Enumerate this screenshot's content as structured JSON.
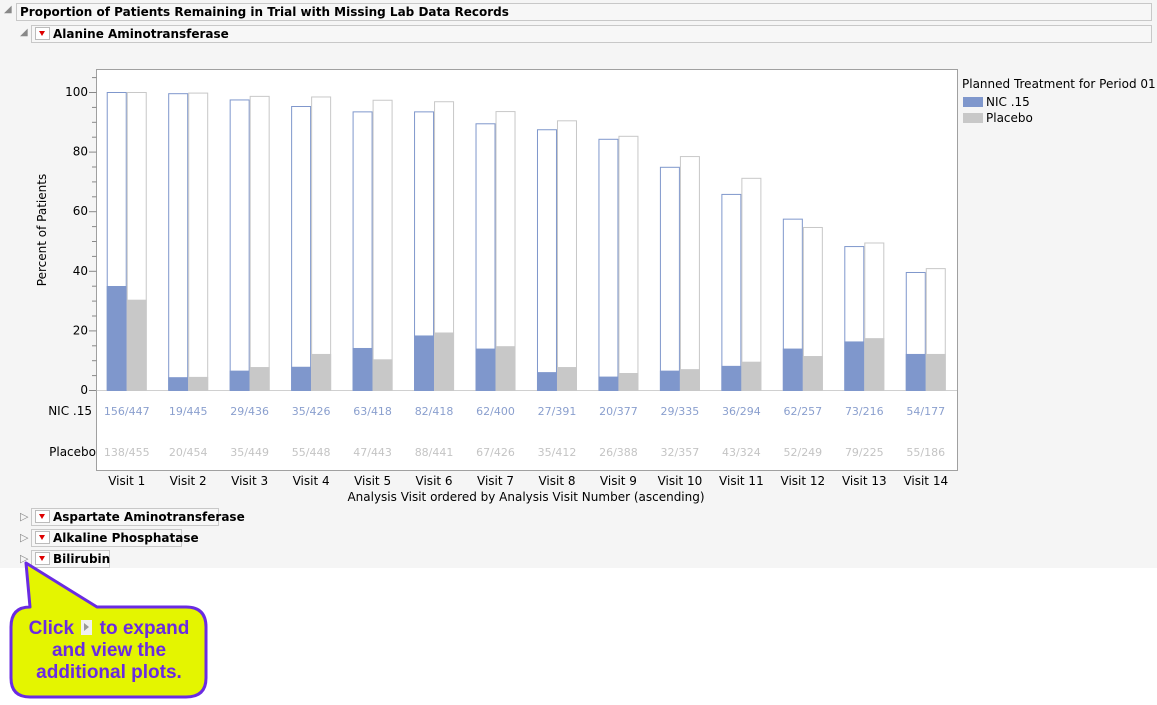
{
  "report": {
    "title": "Proportion of Patients Remaining in Trial with Missing Lab Data Records",
    "sections": [
      {
        "label": "Alanine Aminotransferase",
        "expanded": true
      },
      {
        "label": "Aspartate Aminotransferase",
        "expanded": false
      },
      {
        "label": "Alkaline Phosphatase",
        "expanded": false
      },
      {
        "label": "Bilirubin",
        "expanded": false
      }
    ]
  },
  "chart_data": {
    "type": "bar",
    "title": "",
    "xlabel": "Analysis Visit ordered by Analysis Visit Number (ascending)",
    "ylabel": "Percent of Patients",
    "ylim": [
      0,
      105
    ],
    "yticks": [
      0,
      20,
      40,
      60,
      80,
      100
    ],
    "grid": false,
    "legend": {
      "title": "Planned Treatment for Period 01",
      "placement": "right"
    },
    "categories": [
      "Visit 1",
      "Visit 2",
      "Visit 3",
      "Visit 4",
      "Visit 5",
      "Visit 6",
      "Visit 7",
      "Visit 8",
      "Visit 9",
      "Visit 10",
      "Visit 11",
      "Visit 12",
      "Visit 13",
      "Visit 14"
    ],
    "series": [
      {
        "name": "NIC .15",
        "color": "#7f97cc",
        "percent_remaining": [
          100,
          99.6,
          97.5,
          95.3,
          93.5,
          93.5,
          89.5,
          87.5,
          84.3,
          74.9,
          65.8,
          57.5,
          48.3,
          39.6
        ],
        "percent_missing": [
          34.9,
          4.3,
          6.5,
          7.8,
          14.1,
          18.3,
          13.9,
          6.0,
          4.5,
          6.5,
          8.1,
          13.9,
          16.3,
          12.1
        ],
        "count_labels": [
          "156/447",
          "19/445",
          "29/436",
          "35/426",
          "63/418",
          "82/418",
          "62/400",
          "27/391",
          "20/377",
          "29/335",
          "36/294",
          "62/257",
          "73/216",
          "54/177"
        ]
      },
      {
        "name": "Placebo",
        "color": "#c8c8c8",
        "percent_remaining": [
          100,
          99.8,
          98.7,
          98.5,
          97.4,
          96.9,
          93.6,
          90.5,
          85.3,
          78.5,
          71.2,
          54.7,
          49.5,
          40.9
        ],
        "percent_missing": [
          30.3,
          4.4,
          7.7,
          12.1,
          10.3,
          19.3,
          14.7,
          7.7,
          5.7,
          7.0,
          9.5,
          11.4,
          17.4,
          12.1
        ],
        "count_labels": [
          "138/455",
          "20/454",
          "35/449",
          "55/448",
          "47/443",
          "88/441",
          "67/426",
          "35/412",
          "26/388",
          "32/357",
          "43/324",
          "52/249",
          "79/225",
          "55/186"
        ]
      }
    ]
  },
  "callout": {
    "text_before": "Click",
    "icon": "disclosure-triangle-icon",
    "text_after": "to expand and view the additional plots.",
    "fill_color": "#e4f500",
    "border_color": "#6a2be2"
  }
}
